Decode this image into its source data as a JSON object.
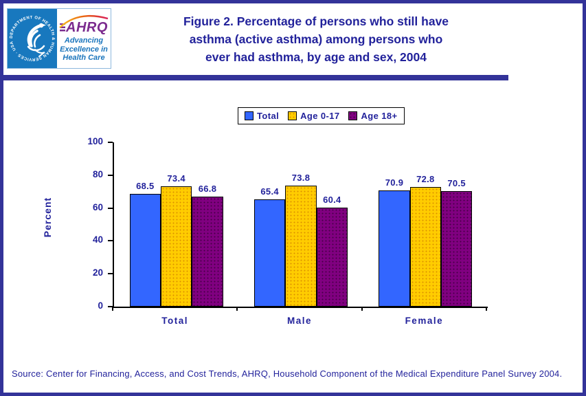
{
  "colors": {
    "navy_text": "#22229B",
    "frame_border": "#333399",
    "hhs_blue": "#1878BE",
    "ahrq_purple": "#7B2B8E",
    "tagline_blue": "#1B75BC",
    "axis_color": "#000000"
  },
  "logo": {
    "hhs_circle_text": "DEPARTMENT OF HEALTH & HUMAN SERVICES · USA",
    "ahrq_acronym": "AHRQ",
    "tagline_lines": [
      "Advancing",
      "Excellence in",
      "Health Care"
    ]
  },
  "header": {
    "title_lines": [
      "Figure 2. Percentage of persons who still have",
      "asthma (active asthma) among persons who",
      "ever had asthma, by age and sex, 2004"
    ]
  },
  "chart_data": {
    "type": "bar",
    "title": "Figure 2. Percentage of persons who still have asthma (active asthma) among persons who ever had asthma, by age and sex, 2004",
    "xlabel": "",
    "ylabel": "Percent",
    "ylim": [
      0,
      100
    ],
    "yticks": [
      0,
      20,
      40,
      60,
      80,
      100
    ],
    "grid": false,
    "legend_position": "top-center",
    "categories": [
      "Total",
      "Male",
      "Female"
    ],
    "series": [
      {
        "name": "Total",
        "color": "#3366FF",
        "values": [
          68.5,
          65.4,
          70.9
        ]
      },
      {
        "name": "Age 0-17",
        "color": "#FFCC00",
        "dot_color": "#DB8F00",
        "values": [
          73.4,
          73.8,
          72.8
        ]
      },
      {
        "name": "Age 18+",
        "color": "#800080",
        "dot_color": "#440044",
        "values": [
          66.8,
          60.4,
          70.5
        ]
      }
    ]
  },
  "source": {
    "text": "Source: Center for Financing, Access, and Cost Trends, AHRQ, Household Component of the Medical Expenditure Panel Survey 2004."
  }
}
